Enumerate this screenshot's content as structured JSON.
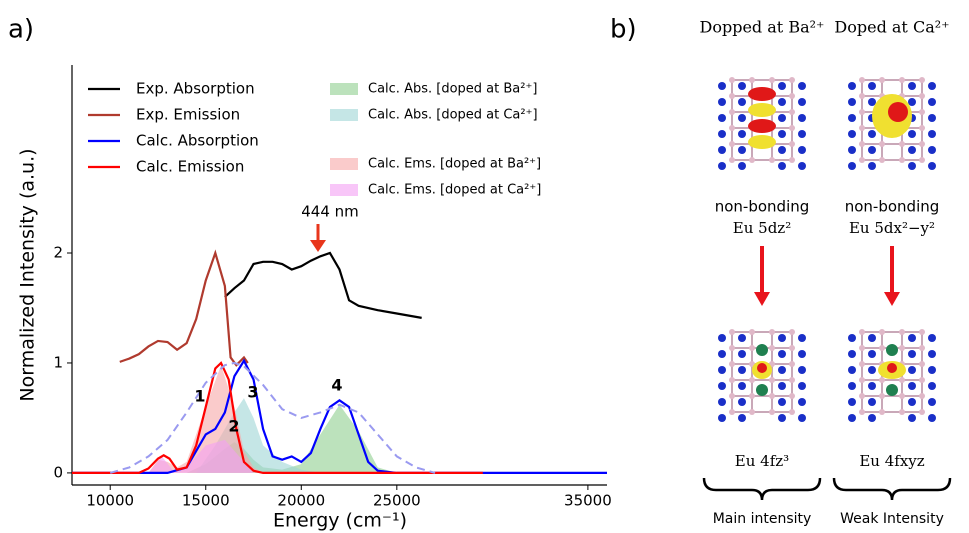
{
  "chart_data": {
    "type": "line",
    "panel_label": "a)",
    "x_label": "Energy (cm⁻¹)",
    "y_label": "Normalized Intensity (a.u.)",
    "xlim": [
      8000,
      36000
    ],
    "ylim": [
      -0.11,
      3.71
    ],
    "xticks": [
      10000,
      15000,
      20000,
      25000,
      35000
    ],
    "yticks": [
      0,
      1,
      2
    ],
    "legend": "upper left",
    "series": [
      {
        "name": "Exp.  Absorption",
        "color": "#000000",
        "style": "line",
        "x": [
          16000,
          16500,
          17000,
          17500,
          18000,
          18500,
          19000,
          19500,
          20000,
          20500,
          21000,
          21500,
          22000,
          22500,
          23000,
          24000,
          25000,
          26300
        ],
        "values": [
          1.6,
          1.68,
          1.75,
          1.9,
          1.92,
          1.92,
          1.9,
          1.85,
          1.88,
          1.93,
          1.97,
          2.0,
          1.85,
          1.57,
          1.52,
          1.48,
          1.45,
          1.41
        ]
      },
      {
        "name": "Exp.  Emission",
        "color": "#b03a2e",
        "style": "line",
        "x": [
          10500,
          11000,
          11500,
          12000,
          12500,
          13000,
          13500,
          14000,
          14500,
          15000,
          15500,
          16000,
          16300,
          16600,
          17000,
          17200
        ],
        "values": [
          1.01,
          1.04,
          1.08,
          1.15,
          1.2,
          1.19,
          1.12,
          1.18,
          1.4,
          1.75,
          2.0,
          1.7,
          1.05,
          0.98,
          1.05,
          1.0
        ]
      },
      {
        "name": "Calc.  Absorption",
        "color": "#0000ff",
        "style": "line",
        "x": [
          8000,
          13000,
          14000,
          14500,
          15000,
          15500,
          16000,
          16500,
          17000,
          17500,
          18000,
          18500,
          19000,
          19500,
          20000,
          20500,
          21000,
          21500,
          22000,
          22500,
          23000,
          23500,
          24000,
          25000,
          36000
        ],
        "values": [
          0,
          0,
          0.05,
          0.2,
          0.35,
          0.4,
          0.55,
          0.88,
          1.02,
          0.85,
          0.4,
          0.15,
          0.12,
          0.15,
          0.1,
          0.18,
          0.4,
          0.6,
          0.66,
          0.6,
          0.35,
          0.1,
          0.02,
          0,
          0
        ]
      },
      {
        "name": "Calc.  Emission",
        "color": "#ff0000",
        "style": "line",
        "x": [
          8000,
          11500,
          12000,
          12500,
          12800,
          13100,
          13500,
          14000,
          14500,
          15000,
          15500,
          15800,
          16200,
          16600,
          17000,
          17500,
          18000,
          29500
        ],
        "values": [
          0,
          0,
          0.04,
          0.13,
          0.16,
          0.13,
          0.03,
          0.05,
          0.25,
          0.6,
          0.95,
          1.0,
          0.85,
          0.4,
          0.1,
          0.02,
          0,
          0
        ]
      },
      {
        "color": "#9a9af0",
        "style": "dashed",
        "x": [
          10000,
          11000,
          12000,
          13000,
          14000,
          15000,
          16000,
          16500,
          17000,
          18000,
          19000,
          20000,
          21000,
          22000,
          23000,
          24000,
          25000,
          26000,
          27000
        ],
        "values": [
          0,
          0.05,
          0.15,
          0.3,
          0.55,
          0.82,
          0.98,
          1.0,
          0.97,
          0.8,
          0.58,
          0.5,
          0.55,
          0.62,
          0.55,
          0.35,
          0.15,
          0.05,
          0
        ]
      },
      {
        "name": "Calc. Abs. [doped at Ba²⁺]",
        "color": "#8fcf8f",
        "style": "area",
        "x": [
          14000,
          15000,
          16000,
          16500,
          17000,
          17500,
          18000,
          19000,
          20000,
          21000,
          22000,
          23000,
          24000,
          25000
        ],
        "values": [
          0,
          0.08,
          0.22,
          0.28,
          0.22,
          0.12,
          0.05,
          0.03,
          0.08,
          0.35,
          0.62,
          0.38,
          0.05,
          0
        ]
      },
      {
        "name": "Calc. Abs. [doped at Ca²⁺]",
        "color": "#9fd6d6",
        "style": "area",
        "x": [
          14500,
          15500,
          16500,
          17000,
          17500,
          18000,
          19000,
          20000,
          21000
        ],
        "values": [
          0,
          0.25,
          0.55,
          0.68,
          0.5,
          0.25,
          0.1,
          0.03,
          0
        ]
      },
      {
        "name": "Calc. Ems. [doped at Ba²⁺]",
        "color": "#f7a8a8",
        "style": "area",
        "x": [
          12000,
          12500,
          13000,
          13500,
          14000,
          15000,
          15800,
          16500,
          17000,
          17500,
          18000
        ],
        "values": [
          0,
          0.12,
          0.1,
          0.05,
          0.1,
          0.6,
          0.98,
          0.6,
          0.2,
          0.05,
          0
        ]
      },
      {
        "name": "Calc. Ems. [doped at Ca²⁺]",
        "color": "#f4a0f4",
        "style": "area",
        "x": [
          12000,
          12700,
          13300,
          14000,
          15000,
          16000,
          16500,
          17500
        ],
        "values": [
          0,
          0.15,
          0.02,
          0.05,
          0.25,
          0.3,
          0.2,
          0
        ]
      }
    ],
    "annotations": [
      "1",
      "2",
      "3",
      "4",
      "444 nm"
    ]
  },
  "panel_b": {
    "panel_label": "b)",
    "columns": [
      {
        "title": "Dopped at Ba²⁺",
        "upper": "non-bonding",
        "orbital": "Eu 5dz²",
        "lower": "Eu 4fz³",
        "caption": "Main intensity"
      },
      {
        "title": "Doped at Ca²⁺",
        "upper": "non-bonding",
        "orbital": "Eu 5dx²−y²",
        "lower": "Eu 4fxyz",
        "caption": "Weak Intensity"
      }
    ]
  }
}
